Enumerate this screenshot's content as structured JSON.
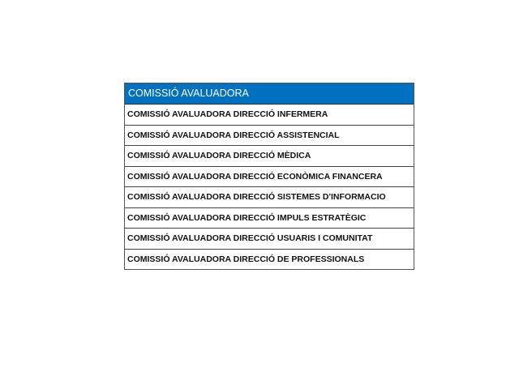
{
  "table": {
    "header": "COMISSIÓ AVALUADORA",
    "header_color": "#0070c0",
    "rows": [
      "COMISSIÓ AVALUADORA DIRECCIÓ INFERMERA",
      "COMISSIÓ AVALUADORA DIRECCIÓ ASSISTENCIAL",
      "COMISSIÓ AVALUADORA DIRECCIÓ MÈDICA",
      "COMISSIÓ AVALUADORA DIRECCIÓ ECONÒMICA FINANCERA",
      "COMISSIÓ AVALUADORA DIRECCIÓ SISTEMES D'INFORMACIO",
      "COMISSIÓ AVALUADORA DIRECCIÓ IMPULS ESTRATÈGIC",
      "COMISSIÓ AVALUADORA DIRECCIÓ USUARIS I COMUNITAT",
      "COMISSIÓ AVALUADORA DIRECCIÓ DE PROFESSIONALS"
    ]
  }
}
